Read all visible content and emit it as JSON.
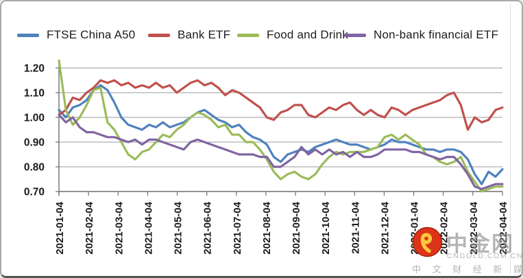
{
  "chart_data": {
    "type": "line",
    "title": "",
    "legend_position": "top",
    "grid": true,
    "x_labels": [
      "2021-01-04",
      "2021-02-04",
      "2021-03-04",
      "2021-04-04",
      "2021-05-04",
      "2021-06-04",
      "2021-07-04",
      "2021-08-04",
      "2021-09-04",
      "2021-10-04",
      "2021-11-04",
      "2021-12-04",
      "2022-01-04",
      "2022-02-04",
      "2022-03-04",
      "2022-04-04"
    ],
    "y_ticks": [
      "1.20",
      "1.10",
      "1.00",
      "0.90",
      "0.80",
      "0.70"
    ],
    "ylim": [
      0.7,
      1.2333
    ],
    "axis_color": "#6f6f6f",
    "gridline_color": "#9a9a9a",
    "tick_label_color": "#1a1a1a",
    "series": [
      {
        "name": "FTSE China A50",
        "color": "#4F81BD",
        "values": [
          1.03,
          1.0,
          1.04,
          1.05,
          1.07,
          1.11,
          1.13,
          1.11,
          1.06,
          1.0,
          0.97,
          0.96,
          0.95,
          0.97,
          0.96,
          0.98,
          0.96,
          0.97,
          0.98,
          1.0,
          1.02,
          1.03,
          1.01,
          0.99,
          0.98,
          0.96,
          0.97,
          0.94,
          0.92,
          0.91,
          0.89,
          0.84,
          0.82,
          0.85,
          0.86,
          0.87,
          0.86,
          0.88,
          0.89,
          0.9,
          0.91,
          0.9,
          0.89,
          0.89,
          0.88,
          0.87,
          0.88,
          0.89,
          0.91,
          0.9,
          0.9,
          0.89,
          0.88,
          0.87,
          0.87,
          0.86,
          0.87,
          0.87,
          0.86,
          0.83,
          0.77,
          0.73,
          0.78,
          0.76,
          0.79
        ]
      },
      {
        "name": "Bank ETF",
        "color": "#C0504D",
        "values": [
          1.01,
          1.03,
          1.08,
          1.07,
          1.1,
          1.12,
          1.15,
          1.14,
          1.15,
          1.13,
          1.14,
          1.12,
          1.13,
          1.12,
          1.14,
          1.12,
          1.13,
          1.1,
          1.12,
          1.14,
          1.15,
          1.13,
          1.14,
          1.12,
          1.09,
          1.11,
          1.1,
          1.08,
          1.06,
          1.04,
          1.0,
          0.99,
          1.02,
          1.03,
          1.05,
          1.05,
          1.01,
          1.0,
          1.02,
          1.04,
          1.03,
          1.05,
          1.06,
          1.03,
          1.01,
          1.03,
          1.01,
          1.0,
          1.04,
          1.03,
          1.01,
          1.03,
          1.04,
          1.05,
          1.06,
          1.07,
          1.09,
          1.1,
          1.05,
          0.95,
          1.0,
          0.98,
          0.99,
          1.03,
          1.04
        ]
      },
      {
        "name": "Food and Drink",
        "color": "#9BBB59",
        "values": [
          1.23,
          1.03,
          0.97,
          1.0,
          1.05,
          1.11,
          1.12,
          0.98,
          0.95,
          0.9,
          0.85,
          0.83,
          0.86,
          0.87,
          0.9,
          0.93,
          0.92,
          0.95,
          0.97,
          1.0,
          1.02,
          1.01,
          0.99,
          0.96,
          0.97,
          0.93,
          0.93,
          0.9,
          0.9,
          0.87,
          0.83,
          0.78,
          0.75,
          0.77,
          0.78,
          0.76,
          0.75,
          0.77,
          0.81,
          0.84,
          0.86,
          0.85,
          0.86,
          0.86,
          0.86,
          0.87,
          0.88,
          0.92,
          0.93,
          0.91,
          0.93,
          0.91,
          0.89,
          0.85,
          0.84,
          0.82,
          0.81,
          0.82,
          0.84,
          0.78,
          0.74,
          0.7,
          0.71,
          0.72,
          0.72
        ]
      },
      {
        "name": "Non-bank financial ETF",
        "color": "#8064A2",
        "values": [
          1.01,
          0.98,
          1.0,
          0.96,
          0.94,
          0.94,
          0.93,
          0.92,
          0.92,
          0.91,
          0.9,
          0.91,
          0.89,
          0.91,
          0.91,
          0.9,
          0.89,
          0.88,
          0.87,
          0.9,
          0.91,
          0.9,
          0.89,
          0.88,
          0.87,
          0.86,
          0.85,
          0.85,
          0.85,
          0.84,
          0.84,
          0.8,
          0.8,
          0.82,
          0.84,
          0.88,
          0.85,
          0.87,
          0.85,
          0.87,
          0.85,
          0.86,
          0.84,
          0.86,
          0.84,
          0.84,
          0.85,
          0.87,
          0.87,
          0.87,
          0.87,
          0.86,
          0.86,
          0.85,
          0.84,
          0.83,
          0.84,
          0.84,
          0.81,
          0.77,
          0.72,
          0.71,
          0.72,
          0.73,
          0.73
        ]
      }
    ]
  },
  "watermark": {
    "brand": "中金网",
    "domain": "CNGOLD.COM.CN",
    "tagline": "中 文 财 经 新 媒 体",
    "logo_color": "#DD3418",
    "logo_edge_color": "#A91F0E",
    "swirl_color": "#FFC83E"
  }
}
